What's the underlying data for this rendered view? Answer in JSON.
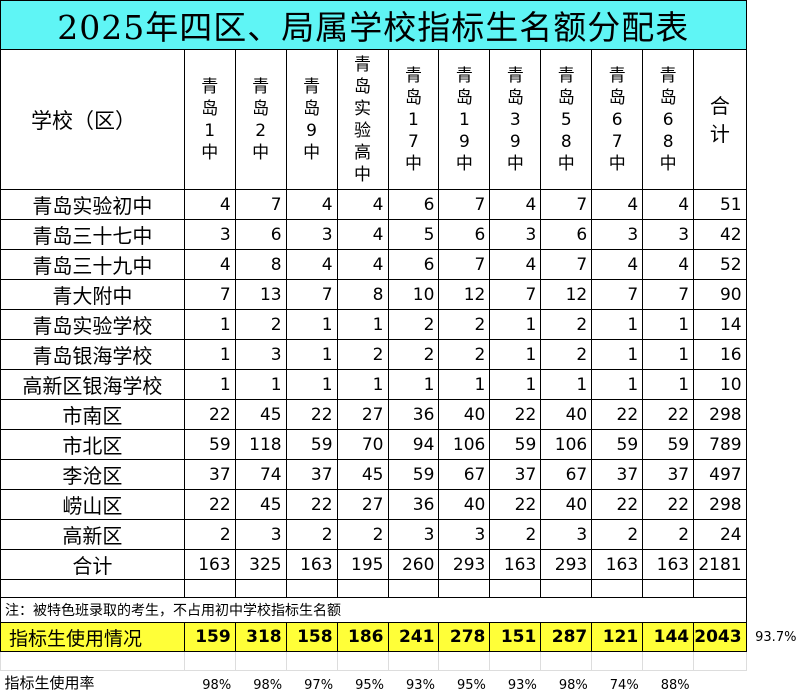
{
  "title": "2025年四区、局属学校指标生名额分配表",
  "header": {
    "school_label": "学校（区）",
    "columns": [
      [
        "青",
        "岛",
        "1",
        "中"
      ],
      [
        "青",
        "岛",
        "2",
        "中"
      ],
      [
        "青",
        "岛",
        "9",
        "中"
      ],
      [
        "青",
        "岛",
        "实",
        "验",
        "高",
        "中"
      ],
      [
        "青",
        "岛",
        "1",
        "7",
        "中"
      ],
      [
        "青",
        "岛",
        "1",
        "9",
        "中"
      ],
      [
        "青",
        "岛",
        "3",
        "9",
        "中"
      ],
      [
        "青",
        "岛",
        "5",
        "8",
        "中"
      ],
      [
        "青",
        "岛",
        "6",
        "7",
        "中"
      ],
      [
        "青",
        "岛",
        "6",
        "8",
        "中"
      ],
      [
        "合",
        "计"
      ]
    ]
  },
  "rows": [
    {
      "name": "青岛实验初中",
      "values": [
        "4",
        "7",
        "4",
        "4",
        "6",
        "7",
        "4",
        "7",
        "4",
        "4",
        "51"
      ]
    },
    {
      "name": "青岛三十七中",
      "values": [
        "3",
        "6",
        "3",
        "4",
        "5",
        "6",
        "3",
        "6",
        "3",
        "3",
        "42"
      ]
    },
    {
      "name": "青岛三十九中",
      "values": [
        "4",
        "8",
        "4",
        "4",
        "6",
        "7",
        "4",
        "7",
        "4",
        "4",
        "52"
      ]
    },
    {
      "name": "青大附中",
      "values": [
        "7",
        "13",
        "7",
        "8",
        "10",
        "12",
        "7",
        "12",
        "7",
        "7",
        "90"
      ]
    },
    {
      "name": "青岛实验学校",
      "values": [
        "1",
        "2",
        "1",
        "1",
        "2",
        "2",
        "1",
        "2",
        "1",
        "1",
        "14"
      ]
    },
    {
      "name": "青岛银海学校",
      "values": [
        "1",
        "3",
        "1",
        "2",
        "2",
        "2",
        "1",
        "2",
        "1",
        "1",
        "16"
      ]
    },
    {
      "name": "高新区银海学校",
      "values": [
        "1",
        "1",
        "1",
        "1",
        "1",
        "1",
        "1",
        "1",
        "1",
        "1",
        "10"
      ]
    },
    {
      "name": "市南区",
      "values": [
        "22",
        "45",
        "22",
        "27",
        "36",
        "40",
        "22",
        "40",
        "22",
        "22",
        "298"
      ]
    },
    {
      "name": "市北区",
      "values": [
        "59",
        "118",
        "59",
        "70",
        "94",
        "106",
        "59",
        "106",
        "59",
        "59",
        "789"
      ]
    },
    {
      "name": "李沧区",
      "values": [
        "37",
        "74",
        "37",
        "45",
        "59",
        "67",
        "37",
        "67",
        "37",
        "37",
        "497"
      ]
    },
    {
      "name": "崂山区",
      "values": [
        "22",
        "45",
        "22",
        "27",
        "36",
        "40",
        "22",
        "40",
        "22",
        "22",
        "298"
      ]
    },
    {
      "name": "高新区",
      "values": [
        "2",
        "3",
        "2",
        "2",
        "3",
        "3",
        "2",
        "3",
        "2",
        "2",
        "24"
      ]
    },
    {
      "name": "合计",
      "values": [
        "163",
        "325",
        "163",
        "195",
        "260",
        "293",
        "163",
        "293",
        "163",
        "163",
        "2181"
      ]
    }
  ],
  "note": "注：被特色班录取的考生，不占用初中学校指标生名额",
  "usage": {
    "label": "指标生使用情况",
    "values": [
      "159",
      "318",
      "158",
      "186",
      "241",
      "278",
      "151",
      "287",
      "121",
      "144",
      "2043"
    ],
    "overall_rate": "93.7%",
    "highlight_color": "#ffff38"
  },
  "rate": {
    "label": "指标生使用率",
    "values": [
      "98%",
      "98%",
      "97%",
      "95%",
      "93%",
      "95%",
      "93%",
      "98%",
      "74%",
      "88%"
    ]
  },
  "title_color": "#5ff5f5"
}
